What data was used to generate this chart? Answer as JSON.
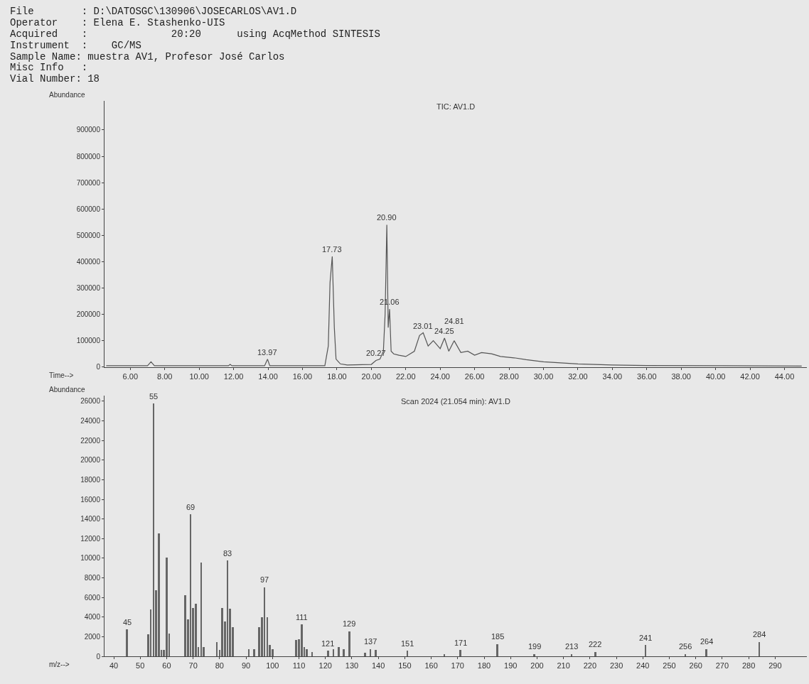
{
  "chart_data": [
    {
      "type": "line",
      "title": "TIC: AV1.D",
      "xlabel": "Time-->",
      "ylabel": "Abundance",
      "grid": false,
      "annotations": [
        "File        : D:\\DATOSGC\\130906\\JOSECARLOS\\AV1.D",
        "Operator    : Elena E. Stashenko-UIS",
        "Acquired    :              20:20      using AcqMethod SINTESIS",
        "Instrument  :    GC/MS",
        "Sample Name: muestra AV1, Profesor José Carlos",
        "Misc Info   :",
        "Vial Number: 18",
        {
          "text": "13.97",
          "x": 13.97,
          "y": 30000
        },
        {
          "text": "17.73",
          "x": 17.73,
          "y": 420000
        },
        {
          "text": "20.27",
          "x": 20.27,
          "y": 25000
        },
        {
          "text": "20.90",
          "x": 20.9,
          "y": 540000
        },
        {
          "text": "21.06",
          "x": 21.06,
          "y": 220000
        },
        {
          "text": "23.01",
          "x": 23.01,
          "y": 130000
        },
        {
          "text": "24.25",
          "x": 24.25,
          "y": 110000
        },
        {
          "text": "24.81",
          "x": 24.81,
          "y": 100000
        }
      ],
      "color": "#555555",
      "x": [
        4.6,
        7.0,
        7.2,
        7.4,
        10.0,
        11.7,
        11.8,
        11.9,
        13.8,
        13.97,
        14.1,
        17.3,
        17.5,
        17.6,
        17.73,
        17.85,
        17.95,
        18.2,
        18.6,
        20.0,
        20.27,
        20.5,
        20.7,
        20.8,
        20.9,
        20.98,
        21.06,
        21.15,
        21.3,
        21.6,
        22.0,
        22.5,
        22.8,
        23.01,
        23.3,
        23.6,
        24.0,
        24.25,
        24.5,
        24.81,
        25.2,
        25.6,
        26.0,
        26.4,
        26.99,
        27.5,
        28.3,
        29.0,
        30.0,
        32.0,
        34.0,
        36.0,
        40.0,
        45.0
      ],
      "values": [
        5000,
        5000,
        20000,
        5000,
        5000,
        5000,
        10000,
        5000,
        5000,
        30000,
        5000,
        5000,
        80000,
        320000,
        420000,
        150000,
        30000,
        12000,
        8000,
        10000,
        25000,
        30000,
        60000,
        200000,
        540000,
        150000,
        220000,
        60000,
        50000,
        45000,
        40000,
        60000,
        120000,
        130000,
        80000,
        100000,
        70000,
        110000,
        60000,
        100000,
        55000,
        60000,
        45000,
        55000,
        50000,
        40000,
        35000,
        28000,
        20000,
        12000,
        8000,
        6000,
        5000,
        4000
      ],
      "xlim": [
        4.5,
        45.3
      ],
      "ylim": [
        0,
        1010000
      ],
      "xticks": [
        {
          "value": 6,
          "label": "6.00"
        },
        {
          "value": 8,
          "label": "8.00"
        },
        {
          "value": 10,
          "label": "10.00"
        },
        {
          "value": 12,
          "label": "12.00"
        },
        {
          "value": 14,
          "label": "14.00"
        },
        {
          "value": 16,
          "label": "16.00"
        },
        {
          "value": 18,
          "label": "18.00"
        },
        {
          "value": 20,
          "label": "20.00"
        },
        {
          "value": 22,
          "label": "22.00"
        },
        {
          "value": 24,
          "label": "24.00"
        },
        {
          "value": 26,
          "label": "26.00"
        },
        {
          "value": 28,
          "label": "28.00"
        },
        {
          "value": 30,
          "label": "30.00"
        },
        {
          "value": 32,
          "label": "32.00"
        },
        {
          "value": 34,
          "label": "34.00"
        },
        {
          "value": 36,
          "label": "36.00"
        },
        {
          "value": 38,
          "label": "38.00"
        },
        {
          "value": 40,
          "label": "40.00"
        },
        {
          "value": 42,
          "label": "42.00"
        },
        {
          "value": 44,
          "label": "44.00"
        }
      ],
      "yticks": [
        0,
        100000,
        200000,
        300000,
        400000,
        500000,
        600000,
        700000,
        800000,
        900000
      ]
    },
    {
      "type": "bar",
      "title": "Scan 2024 (21.054 min): AV1.D",
      "xlabel": "m/z-->",
      "ylabel": "Abundance",
      "grid": false,
      "color": "#666666",
      "x": [
        45,
        53,
        54,
        55,
        56,
        57,
        58,
        59,
        60,
        61,
        67,
        68,
        69,
        70,
        71,
        72,
        73,
        74,
        79,
        80,
        81,
        82,
        83,
        84,
        85,
        91,
        93,
        95,
        96,
        97,
        98,
        99,
        100,
        109,
        110,
        111,
        112,
        113,
        115,
        121,
        123,
        125,
        127,
        129,
        135,
        137,
        139,
        151,
        165,
        171,
        185,
        199,
        213,
        222,
        241,
        256,
        264,
        284
      ],
      "values": [
        2800,
        2300,
        4800,
        25800,
        6800,
        12600,
        700,
        700,
        10100,
        2400,
        6300,
        3800,
        14500,
        5000,
        5400,
        1000,
        9600,
        1000,
        1500,
        700,
        5000,
        3600,
        9800,
        4900,
        3000,
        800,
        800,
        3000,
        4000,
        7100,
        4000,
        1200,
        800,
        1700,
        1800,
        3300,
        1000,
        800,
        500,
        600,
        800,
        1000,
        800,
        2600,
        400,
        800,
        700,
        600,
        300,
        700,
        1300,
        300,
        300,
        500,
        1200,
        300,
        800,
        1500
      ],
      "annotations": [
        {
          "text": "45",
          "x": 45,
          "y": 2800
        },
        {
          "text": "55",
          "x": 55,
          "y": 25800
        },
        {
          "text": "69",
          "x": 69,
          "y": 14500
        },
        {
          "text": "83",
          "x": 83,
          "y": 9800
        },
        {
          "text": "97",
          "x": 97,
          "y": 7100
        },
        {
          "text": "111",
          "x": 111,
          "y": 3300
        },
        {
          "text": "121",
          "x": 121,
          "y": 600
        },
        {
          "text": "129",
          "x": 129,
          "y": 2600
        },
        {
          "text": "137",
          "x": 137,
          "y": 800
        },
        {
          "text": "151",
          "x": 151,
          "y": 600
        },
        {
          "text": "171",
          "x": 171,
          "y": 700
        },
        {
          "text": "185",
          "x": 185,
          "y": 1300
        },
        {
          "text": "199",
          "x": 199,
          "y": 300
        },
        {
          "text": "213",
          "x": 213,
          "y": 300
        },
        {
          "text": "222",
          "x": 222,
          "y": 500
        },
        {
          "text": "241",
          "x": 241,
          "y": 1200
        },
        {
          "text": "256",
          "x": 256,
          "y": 300
        },
        {
          "text": "264",
          "x": 264,
          "y": 800
        },
        {
          "text": "284",
          "x": 284,
          "y": 1500
        }
      ],
      "xlim": [
        36.5,
        302
      ],
      "ylim": [
        0,
        26600
      ],
      "xticks": [
        40,
        50,
        60,
        70,
        80,
        90,
        100,
        110,
        120,
        130,
        140,
        150,
        160,
        170,
        180,
        190,
        200,
        210,
        220,
        230,
        240,
        250,
        260,
        270,
        280,
        290
      ],
      "yticks": [
        0,
        2000,
        4000,
        6000,
        8000,
        10000,
        12000,
        14000,
        16000,
        18000,
        20000,
        22000,
        24000,
        26000
      ]
    }
  ]
}
